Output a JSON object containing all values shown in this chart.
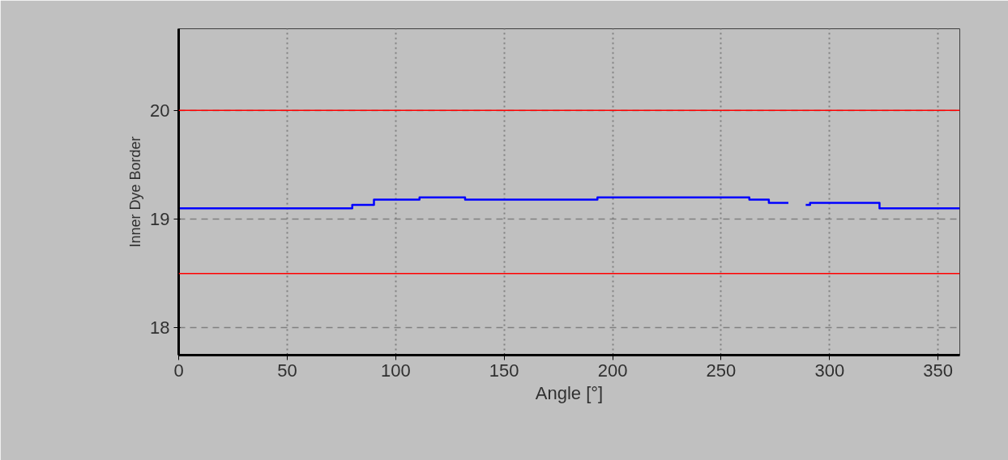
{
  "chart_data": {
    "type": "step",
    "xlabel": "Angle [°]",
    "ylabel": "Inner Dye Border",
    "x": [
      0,
      80,
      90,
      111,
      132,
      193,
      263,
      272,
      281,
      289,
      291,
      323,
      360
    ],
    "series": [
      {
        "color": "#0000ff",
        "values": [
          19.1,
          19.13,
          19.18,
          19.2,
          19.18,
          19.2,
          19.18,
          19.15,
          null,
          19.13,
          19.15,
          19.1,
          19.1
        ]
      }
    ],
    "xlim": [
      0,
      360
    ],
    "ylim": [
      17.75,
      20.75
    ],
    "xticks": [
      0,
      50,
      100,
      150,
      200,
      250,
      300,
      350
    ],
    "yticks": [
      18,
      19,
      20
    ],
    "ref_lines": [
      {
        "axis": "y",
        "value": 20,
        "color": "#ff0000"
      },
      {
        "axis": "y",
        "value": 18.5,
        "color": "#ff0000"
      }
    ],
    "grid": true,
    "marker": "none",
    "line_style": "solid"
  }
}
